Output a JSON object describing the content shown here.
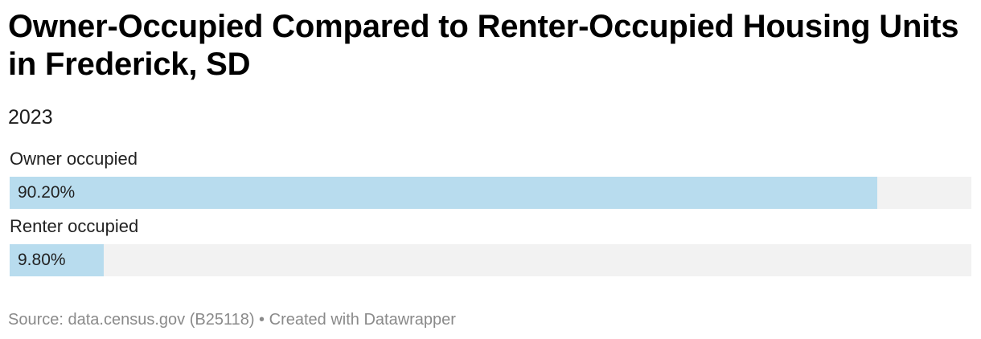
{
  "header": {
    "title": "Owner-Occupied Compared to Renter-Occupied Housing Units in Frederick, SD",
    "subtitle": "2023"
  },
  "footer": {
    "source_label": "Source: ",
    "source_text": "data.census.gov (B25118)",
    "separator": " • ",
    "credit": "Created with Datawrapper"
  },
  "colors": {
    "bar": "#b8dcee",
    "track": "#f2f2f2",
    "footer_text": "#8a8a8a"
  },
  "chart_data": {
    "type": "bar",
    "orientation": "horizontal",
    "title": "Owner-Occupied Compared to Renter-Occupied Housing Units in Frederick, SD",
    "subtitle": "2023",
    "categories": [
      "Owner occupied",
      "Renter occupied"
    ],
    "values": [
      90.2,
      9.8
    ],
    "value_labels": [
      "90.20%",
      "9.80%"
    ],
    "xlim": [
      0,
      100
    ],
    "unit": "%",
    "grid": false,
    "legend": "none"
  }
}
